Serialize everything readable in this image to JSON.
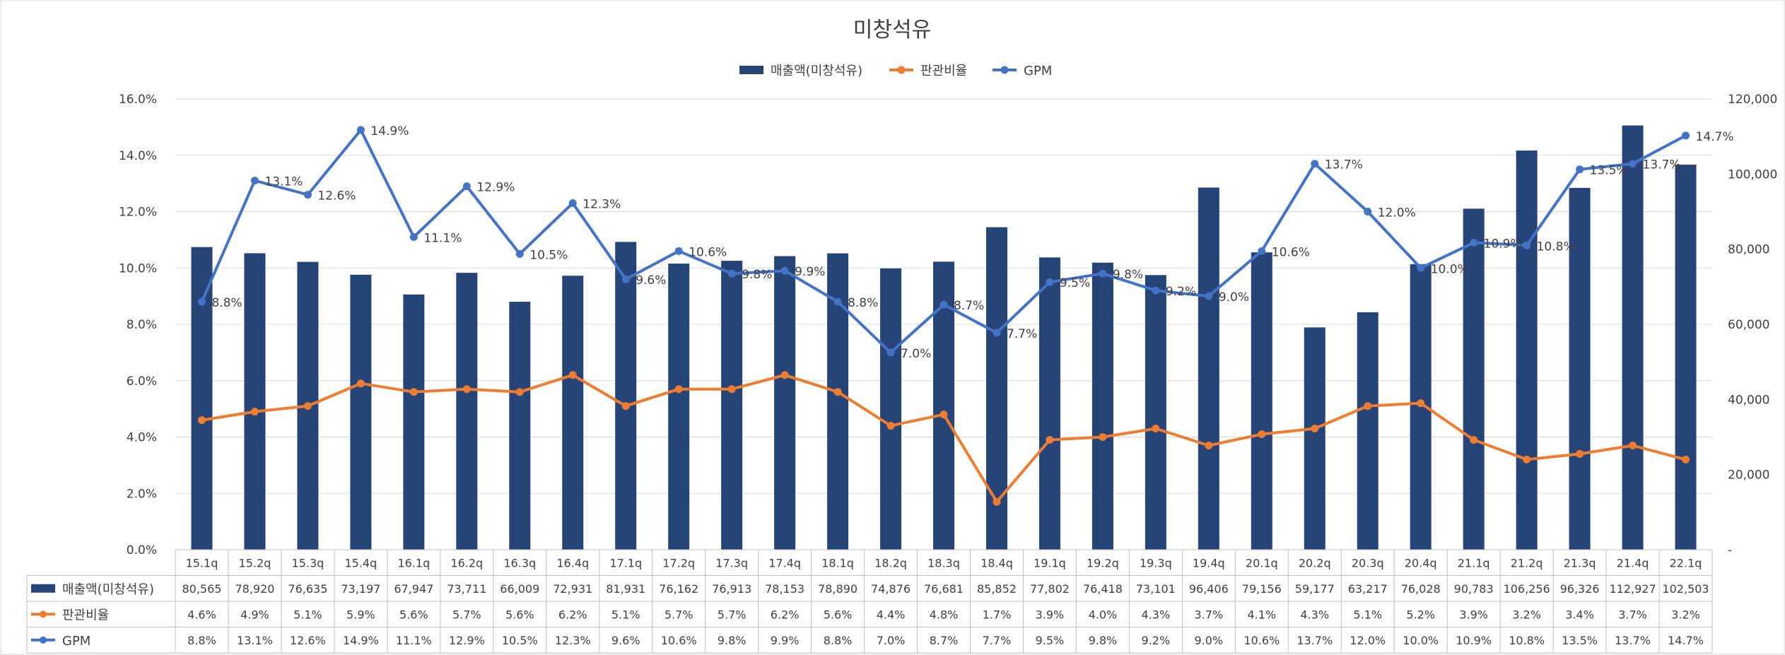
{
  "chart_data": {
    "type": "bar",
    "title": "미창석유",
    "categories": [
      "15.1q",
      "15.2q",
      "15.3q",
      "15.4q",
      "16.1q",
      "16.2q",
      "16.3q",
      "16.4q",
      "17.1q",
      "17.2q",
      "17.3q",
      "17.4q",
      "18.1q",
      "18.2q",
      "18.3q",
      "18.4q",
      "19.1q",
      "19.2q",
      "19.3q",
      "19.4q",
      "20.1q",
      "20.2q",
      "20.3q",
      "20.4q",
      "21.1q",
      "21.2q",
      "21.3q",
      "21.4q",
      "22.1q"
    ],
    "left_axis": {
      "min": 0,
      "max": 16,
      "ticks": [
        "0.0%",
        "2.0%",
        "4.0%",
        "6.0%",
        "8.0%",
        "10.0%",
        "12.0%",
        "14.0%",
        "16.0%"
      ]
    },
    "right_axis": {
      "min": 0,
      "max": 120000,
      "ticks": [
        "-",
        "20,000",
        "40,000",
        "60,000",
        "80,000",
        "100,000",
        "120,000"
      ]
    },
    "series": [
      {
        "name": "매출액(미창석유)",
        "kind": "bar",
        "axis": "right",
        "color": "#264478",
        "values": [
          80565,
          78920,
          76635,
          73197,
          67947,
          73711,
          66009,
          72931,
          81931,
          76162,
          76913,
          78153,
          78890,
          74876,
          76681,
          85852,
          77802,
          76418,
          73101,
          96406,
          79156,
          59177,
          63217,
          76028,
          90783,
          106256,
          96326,
          112927,
          102503
        ],
        "labels": [
          "80,565",
          "78,920",
          "76,635",
          "73,197",
          "67,947",
          "73,711",
          "66,009",
          "72,931",
          "81,931",
          "76,162",
          "76,913",
          "78,153",
          "78,890",
          "74,876",
          "76,681",
          "85,852",
          "77,802",
          "76,418",
          "73,101",
          "96,406",
          "79,156",
          "59,177",
          "63,217",
          "76,028",
          "90,783",
          "106,256",
          "96,326",
          "112,927",
          "102,503"
        ]
      },
      {
        "name": "판관비율",
        "kind": "line",
        "axis": "left",
        "color": "#ED7D31",
        "values": [
          4.6,
          4.9,
          5.1,
          5.9,
          5.6,
          5.7,
          5.6,
          6.2,
          5.1,
          5.7,
          5.7,
          6.2,
          5.6,
          4.4,
          4.8,
          1.7,
          3.9,
          4.0,
          4.3,
          3.7,
          4.1,
          4.3,
          5.1,
          5.2,
          3.9,
          3.2,
          3.4,
          3.7,
          3.2
        ],
        "labels": [
          "4.6%",
          "4.9%",
          "5.1%",
          "5.9%",
          "5.6%",
          "5.7%",
          "5.6%",
          "6.2%",
          "5.1%",
          "5.7%",
          "5.7%",
          "6.2%",
          "5.6%",
          "4.4%",
          "4.8%",
          "1.7%",
          "3.9%",
          "4.0%",
          "4.3%",
          "3.7%",
          "4.1%",
          "4.3%",
          "5.1%",
          "5.2%",
          "3.9%",
          "3.2%",
          "3.4%",
          "3.7%",
          "3.2%"
        ]
      },
      {
        "name": "GPM",
        "kind": "line",
        "axis": "left",
        "color": "#4472C4",
        "values": [
          8.8,
          13.1,
          12.6,
          14.9,
          11.1,
          12.9,
          10.5,
          12.3,
          9.6,
          10.6,
          9.8,
          9.9,
          8.8,
          7.0,
          8.7,
          7.7,
          9.5,
          9.8,
          9.2,
          9.0,
          10.6,
          13.7,
          12.0,
          10.0,
          10.9,
          10.8,
          13.5,
          13.7,
          14.7
        ],
        "labels": [
          "8.8%",
          "13.1%",
          "12.6%",
          "14.9%",
          "11.1%",
          "12.9%",
          "10.5%",
          "12.3%",
          "9.6%",
          "10.6%",
          "9.8%",
          "9.9%",
          "8.8%",
          "7.0%",
          "8.7%",
          "7.7%",
          "9.5%",
          "9.8%",
          "9.2%",
          "9.0%",
          "10.6%",
          "13.7%",
          "12.0%",
          "10.0%",
          "10.9%",
          "10.8%",
          "13.5%",
          "13.7%",
          "14.7%"
        ]
      }
    ],
    "legend": [
      "매출액(미창석유)",
      "판관비율",
      "GPM"
    ],
    "legend_position": "top",
    "data_table": true
  }
}
